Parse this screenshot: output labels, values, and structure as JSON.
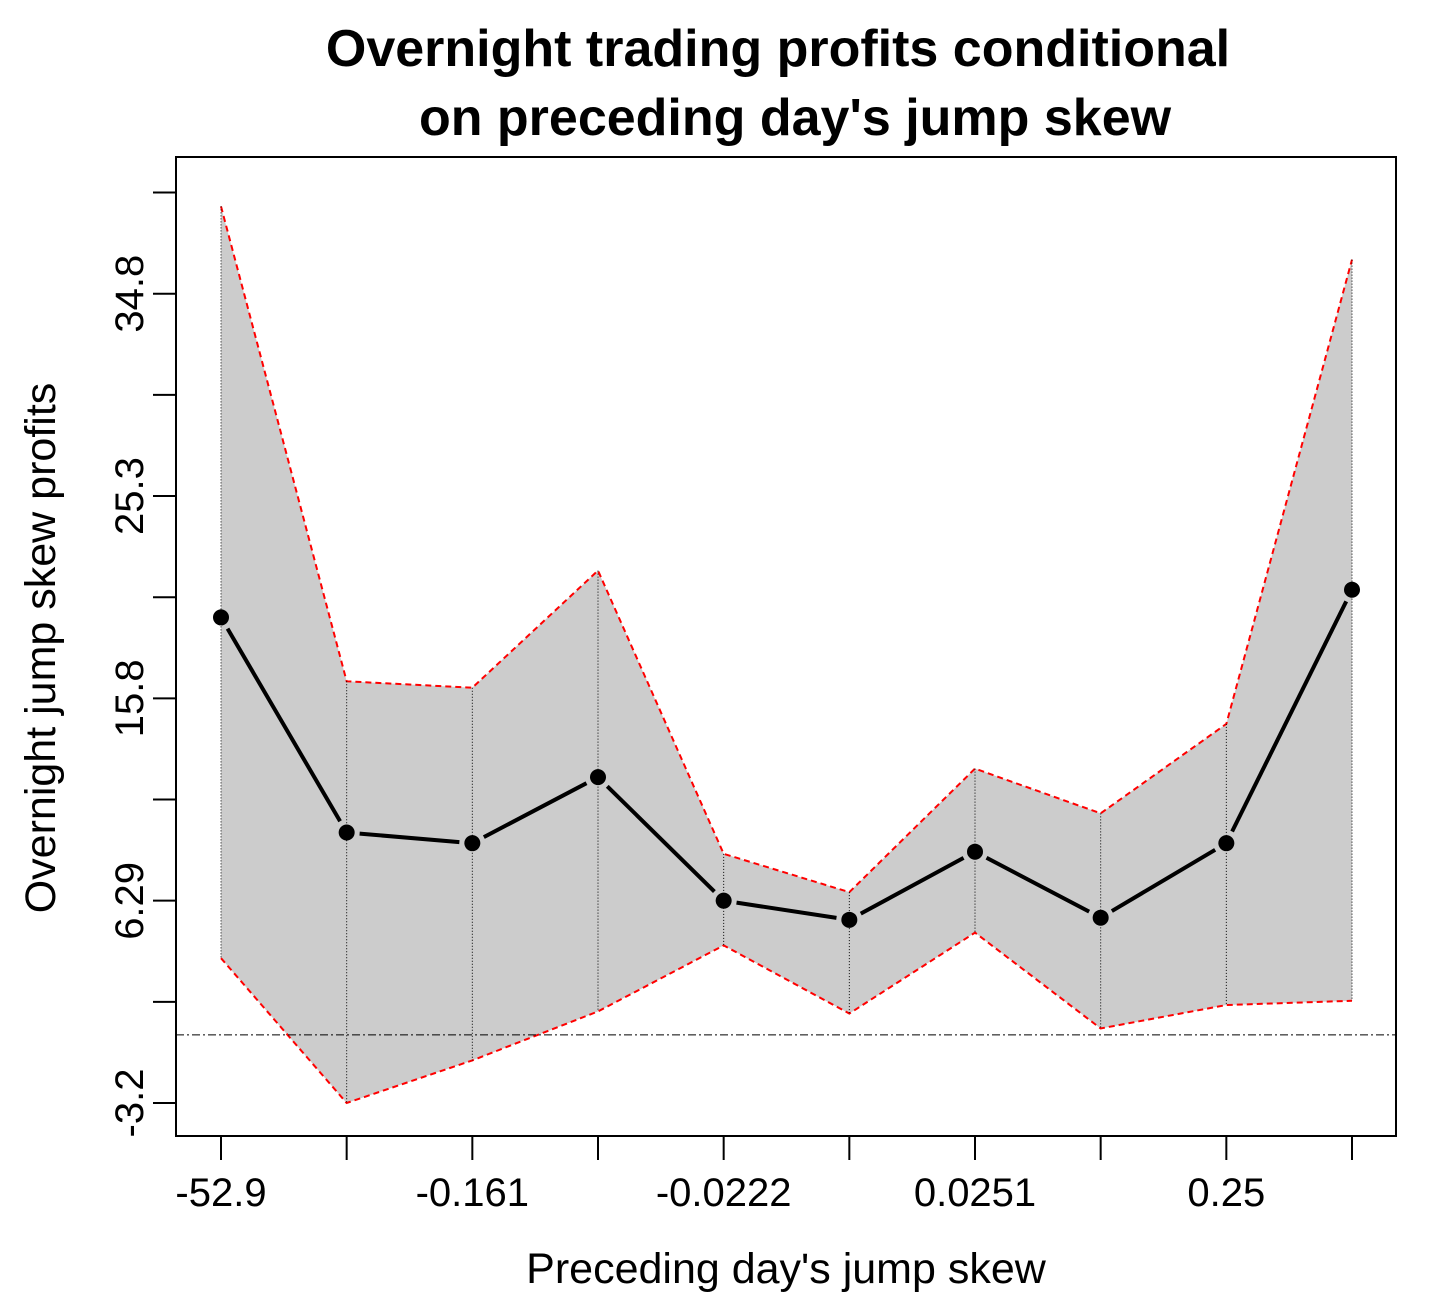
{
  "chart_data": {
    "type": "line",
    "title": [
      "Overnight trading profits conditional",
      "on preceding day's jump skew"
    ],
    "xlabel": "Preceding day's jump skew",
    "ylabel": "Overnight jump skew profits",
    "x_tick_labels": [
      "-52.9",
      "",
      "-0.161",
      "",
      "-0.0222",
      "",
      "0.0251",
      "",
      "0.25",
      ""
    ],
    "y_ticks": [
      -3.2,
      6.29,
      15.8,
      25.3,
      34.8
    ],
    "ylim": [
      -4.9,
      39.3
    ],
    "reference_line": 0,
    "series": [
      {
        "values": [
          19.6,
          9.5,
          9.0,
          12.1,
          6.3,
          5.4,
          8.6,
          5.5,
          9.0,
          20.9
        ]
      }
    ],
    "band": {
      "upper": [
        38.9,
        16.6,
        16.3,
        21.8,
        8.5,
        6.7,
        12.5,
        10.4,
        14.6,
        36.4
      ],
      "lower": [
        3.6,
        -3.2,
        -1.2,
        1.1,
        4.2,
        1.0,
        4.8,
        0.3,
        1.4,
        1.6
      ]
    },
    "grid": "vertical dotted lines at each bin",
    "colors": {
      "band_fill": "#cccccc",
      "band_edge": "#ff0000",
      "line": "#000000"
    }
  }
}
